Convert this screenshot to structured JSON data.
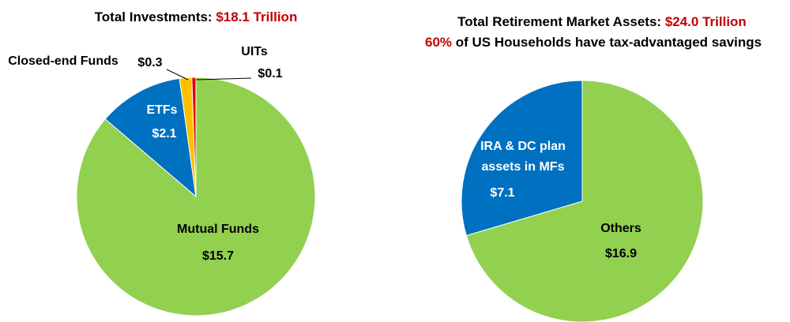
{
  "chart_data": [
    {
      "type": "pie",
      "title": "Total Investments:",
      "title_total": "$18.1 Trillion",
      "categories": [
        "Mutual Funds",
        "ETFs",
        "Closed-end Funds",
        "UITs"
      ],
      "values": [
        15.7,
        2.1,
        0.3,
        0.1
      ],
      "value_labels": [
        "$15.7",
        "$2.1",
        "$0.3",
        "$0.1"
      ],
      "colors": [
        "#92d050",
        "#0070c0",
        "#ffc000",
        "#e00000"
      ]
    },
    {
      "type": "pie",
      "title": "Total Retirement Market Assets:",
      "title_total": "$24.0 Trillion",
      "subtitle_highlight": "60%",
      "subtitle": "of US Households have tax-advantaged savings",
      "categories": [
        "Others",
        "IRA & DC plan assets in MFs"
      ],
      "values": [
        16.9,
        7.1
      ],
      "value_labels": [
        "$16.9",
        "$7.1"
      ],
      "colors": [
        "#92d050",
        "#0070c0"
      ]
    }
  ]
}
